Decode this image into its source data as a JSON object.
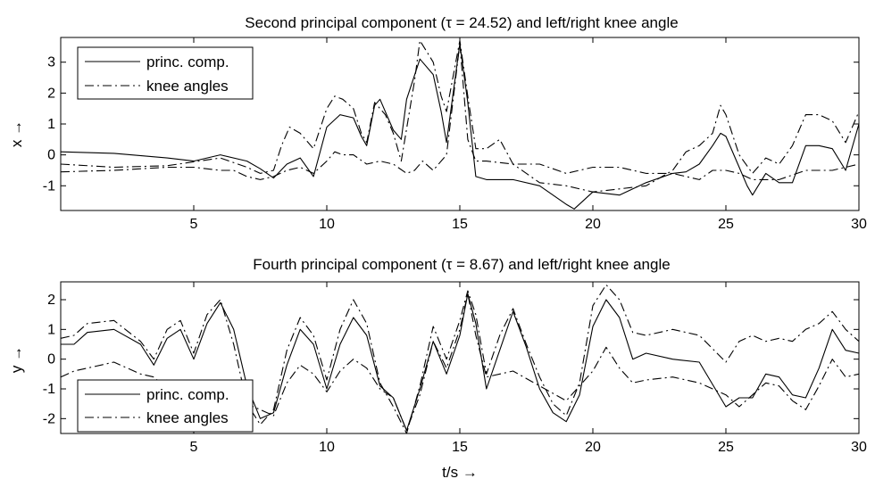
{
  "chart_data": [
    {
      "type": "line",
      "title": "Second principal component (τ = 24.52) and left/right knee angle",
      "xlabel": "",
      "ylabel": "x →",
      "xlim": [
        0,
        30
      ],
      "ylim": [
        -1.8,
        3.8
      ],
      "xticks": [
        "5",
        "10",
        "15",
        "20",
        "25",
        "30"
      ],
      "yticks": [
        "-1",
        "0",
        "1",
        "2",
        "3"
      ],
      "legend": {
        "position": "top-left",
        "entries": [
          "princ. comp.",
          "knee angles"
        ]
      },
      "series": [
        {
          "name": "princ. comp.",
          "style": "solid",
          "x": [
            0,
            2,
            4,
            5,
            6,
            7,
            7.5,
            8,
            8.5,
            9,
            9.5,
            10,
            10.5,
            11,
            11.3,
            11.5,
            11.8,
            12,
            12.5,
            12.8,
            13,
            13.5,
            14,
            14.3,
            14.5,
            15,
            15.3,
            15.6,
            16,
            17,
            18,
            19,
            19.3,
            20,
            21,
            22,
            23,
            23.5,
            24,
            24.5,
            24.8,
            25,
            25.5,
            25.8,
            26,
            26.5,
            27,
            27.5,
            28,
            28.5,
            29,
            29.5,
            30
          ],
          "y": [
            0.1,
            0.05,
            -0.1,
            -0.2,
            0.0,
            -0.2,
            -0.45,
            -0.75,
            -0.3,
            -0.1,
            -0.7,
            0.9,
            1.3,
            1.2,
            0.6,
            0.3,
            1.6,
            1.8,
            0.8,
            0.5,
            1.8,
            3.1,
            2.6,
            1.4,
            0.4,
            3.6,
            1.7,
            -0.7,
            -0.8,
            -0.8,
            -1.0,
            -1.6,
            -1.75,
            -1.2,
            -1.3,
            -0.9,
            -0.6,
            -0.55,
            -0.3,
            0.3,
            0.7,
            0.6,
            -0.4,
            -1.0,
            -1.3,
            -0.6,
            -0.9,
            -0.9,
            0.3,
            0.3,
            0.2,
            -0.5,
            1.0
          ]
        },
        {
          "name": "knee angles",
          "style": "dashdot",
          "x": [
            0,
            2,
            4,
            6,
            7,
            7.5,
            8,
            8.3,
            8.6,
            9,
            9.5,
            10,
            10.3,
            10.6,
            11,
            11.3,
            11.5,
            11.8,
            12.2,
            12.5,
            12.8,
            13.3,
            13.5,
            14,
            14.3,
            14.5,
            15,
            15.3,
            15.6,
            16,
            16.5,
            17,
            18,
            19,
            20,
            21,
            22,
            23,
            23.5,
            24,
            24.5,
            24.8,
            25,
            25.5,
            26,
            26.5,
            27,
            27.5,
            28,
            28.5,
            29,
            29.5,
            30
          ],
          "y": [
            -0.3,
            -0.4,
            -0.35,
            -0.1,
            -0.4,
            -0.6,
            -0.5,
            0.3,
            0.9,
            0.7,
            0.2,
            1.5,
            1.9,
            1.8,
            1.5,
            0.7,
            0.4,
            1.7,
            1.3,
            0.7,
            -0.2,
            2.4,
            3.7,
            3.0,
            1.9,
            1.4,
            3.7,
            1.9,
            0.2,
            0.2,
            0.5,
            -0.3,
            -0.9,
            -1.0,
            -1.2,
            -1.1,
            -1.0,
            -0.5,
            0.1,
            0.3,
            0.7,
            1.6,
            1.3,
            0.0,
            -0.6,
            -0.1,
            -0.3,
            0.3,
            1.3,
            1.3,
            1.1,
            0.4,
            1.4
          ]
        },
        {
          "name": "",
          "style": "dashdot",
          "x": [
            0,
            2,
            4,
            5,
            6,
            6.5,
            7,
            7.5,
            8,
            8.5,
            9,
            9.5,
            10,
            10.3,
            10.6,
            11,
            11.5,
            12,
            12.5,
            13,
            13.3,
            13.6,
            14,
            14.5,
            15,
            15.3,
            15.6,
            16,
            17,
            18,
            19,
            20,
            21,
            22,
            23,
            24,
            24.5,
            25,
            25.5,
            26,
            27,
            28,
            29,
            30
          ],
          "y": [
            -0.55,
            -0.5,
            -0.4,
            -0.4,
            -0.5,
            -0.5,
            -0.7,
            -0.8,
            -0.7,
            -0.5,
            -0.4,
            -0.6,
            -0.2,
            0.1,
            0.0,
            0.0,
            -0.3,
            -0.2,
            -0.3,
            -0.6,
            -0.5,
            -0.2,
            -0.5,
            0.0,
            3.6,
            0.5,
            -0.2,
            -0.2,
            -0.3,
            -0.3,
            -0.6,
            -0.4,
            -0.4,
            -0.6,
            -0.6,
            -0.8,
            -0.5,
            -0.5,
            -0.6,
            -0.8,
            -0.8,
            -0.5,
            -0.5,
            -0.3
          ]
        }
      ]
    },
    {
      "type": "line",
      "title": "Fourth principal component (τ = 8.67) and left/right knee angle",
      "xlabel": "t/s →",
      "ylabel": "y →",
      "xlim": [
        0,
        30
      ],
      "ylim": [
        -2.5,
        2.6
      ],
      "xticks": [
        "5",
        "10",
        "15",
        "20",
        "25",
        "30"
      ],
      "yticks": [
        "-2",
        "-1",
        "0",
        "1",
        "2"
      ],
      "legend": {
        "position": "bottom-left",
        "entries": [
          "princ. comp.",
          "knee angles"
        ]
      },
      "series": [
        {
          "name": "princ. comp.",
          "style": "solid",
          "x": [
            0,
            0.5,
            1,
            2,
            3,
            3.5,
            4,
            4.5,
            5,
            5.5,
            6,
            6.5,
            7,
            7.5,
            8,
            8.5,
            9,
            9.5,
            10,
            10.5,
            11,
            11.5,
            12,
            12.5,
            13,
            13.5,
            14,
            14.5,
            15,
            15.3,
            15.6,
            16,
            16.5,
            17,
            17.5,
            18,
            18.5,
            19,
            19.5,
            20,
            20.5,
            21,
            21.5,
            22,
            23,
            24,
            25,
            25.5,
            26,
            26.5,
            27,
            27.5,
            28,
            28.5,
            29,
            29.5,
            30
          ],
          "y": [
            0.5,
            0.5,
            0.9,
            1.0,
            0.5,
            -0.2,
            0.7,
            1.0,
            0.0,
            1.2,
            1.9,
            1.0,
            -0.9,
            -2.0,
            -1.8,
            -0.2,
            1.0,
            0.5,
            -1.0,
            0.5,
            1.4,
            0.8,
            -0.9,
            -1.3,
            -2.4,
            -1.0,
            0.6,
            -0.5,
            0.8,
            2.2,
            1.2,
            -1.0,
            0.3,
            1.6,
            0.4,
            -1.0,
            -1.8,
            -2.1,
            -1.2,
            1.1,
            2.0,
            1.4,
            0.0,
            0.2,
            0.0,
            -0.1,
            -1.6,
            -1.3,
            -1.3,
            -0.5,
            -0.6,
            -1.2,
            -1.3,
            -0.3,
            1.0,
            0.3,
            0.2
          ]
        },
        {
          "name": "knee angles",
          "style": "dashdot",
          "x": [
            0,
            0.5,
            1,
            2,
            3,
            3.5,
            4,
            4.5,
            5,
            5.5,
            6,
            6.5,
            7,
            7.5,
            8,
            8.5,
            9,
            9.5,
            10,
            10.5,
            11,
            11.5,
            12,
            12.5,
            13,
            13.5,
            14,
            14.5,
            15,
            15.3,
            15.6,
            16,
            16.5,
            17,
            17.5,
            18,
            18.5,
            19,
            19.5,
            20,
            20.5,
            21,
            21.5,
            22,
            23,
            24,
            25,
            25.5,
            26,
            26.5,
            27,
            27.5,
            28,
            28.5,
            29,
            29.5,
            30
          ],
          "y": [
            0.7,
            0.8,
            1.2,
            1.3,
            0.6,
            0.0,
            1.0,
            1.3,
            0.2,
            1.5,
            2.0,
            0.5,
            -1.5,
            -2.2,
            -1.7,
            0.3,
            1.4,
            0.8,
            -0.7,
            1.0,
            2.0,
            1.2,
            -0.8,
            -1.6,
            -2.5,
            -0.9,
            1.1,
            0.0,
            1.3,
            2.3,
            1.5,
            -0.5,
            0.8,
            1.7,
            0.5,
            -0.6,
            -1.5,
            -1.9,
            -0.8,
            1.8,
            2.5,
            2.0,
            0.9,
            0.8,
            1.0,
            0.8,
            -0.1,
            0.6,
            0.8,
            0.6,
            0.7,
            0.6,
            1.0,
            1.2,
            1.6,
            1.0,
            0.6
          ]
        },
        {
          "name": "",
          "style": "dashdot",
          "x": [
            0,
            0.5,
            1,
            2,
            3,
            3.5,
            4,
            5,
            6,
            6.5,
            7,
            7.5,
            8,
            8.5,
            9,
            9.5,
            10,
            10.5,
            11,
            11.5,
            12,
            12.5,
            13,
            13.5,
            14,
            14.5,
            15,
            15.3,
            15.6,
            16,
            17,
            18,
            19,
            20,
            20.5,
            21,
            21.5,
            22,
            23,
            24,
            25,
            25.5,
            26,
            26.5,
            27,
            27.5,
            28,
            28.5,
            29,
            29.5,
            30
          ],
          "y": [
            -0.6,
            -0.4,
            -0.3,
            -0.1,
            -0.5,
            -0.6,
            -1.0,
            -1.2,
            -1.2,
            -1.4,
            -1.5,
            -1.7,
            -1.9,
            -0.8,
            -0.2,
            -0.5,
            -1.1,
            -0.4,
            0.0,
            -0.3,
            -1.0,
            -1.3,
            -2.4,
            -1.2,
            0.6,
            -0.3,
            1.0,
            2.2,
            0.8,
            -0.6,
            -0.4,
            -0.9,
            -1.4,
            -0.4,
            0.4,
            -0.3,
            -0.8,
            -0.7,
            -0.6,
            -0.8,
            -1.2,
            -1.6,
            -1.2,
            -0.8,
            -0.9,
            -1.4,
            -1.7,
            -0.9,
            0.0,
            -0.6,
            -0.5
          ]
        }
      ]
    }
  ]
}
